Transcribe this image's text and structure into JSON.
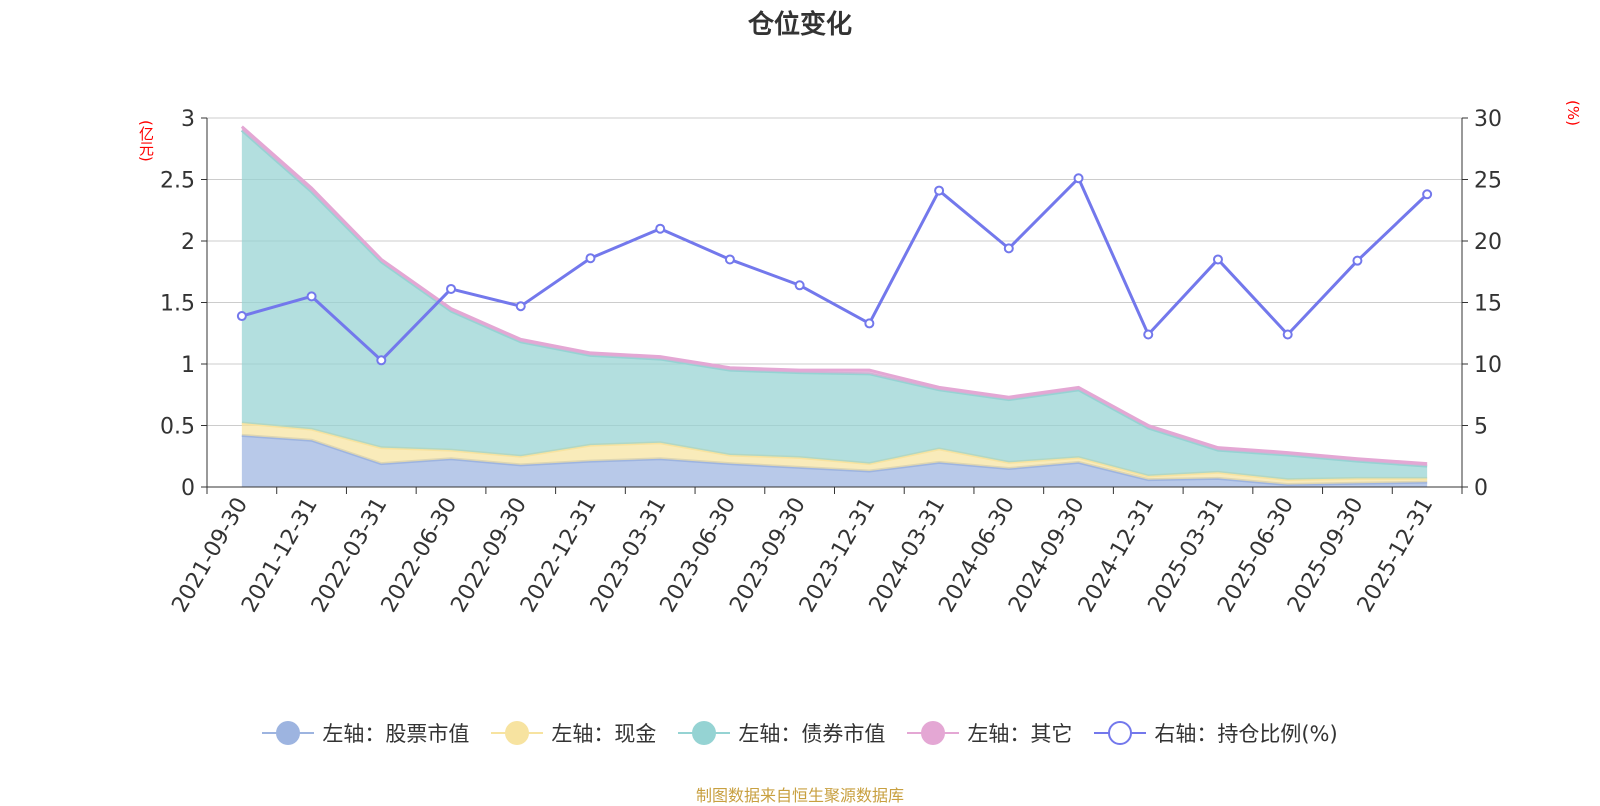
{
  "chart_data": {
    "type": "area",
    "title": "仓位变化",
    "left_axis_unit": "(亿元)",
    "right_axis_unit": "(%)",
    "categories": [
      "2021-09-30",
      "2021-12-31",
      "2022-03-31",
      "2022-06-30",
      "2022-09-30",
      "2022-12-31",
      "2023-03-31",
      "2023-06-30",
      "2023-09-30",
      "2023-12-31",
      "2024-03-31",
      "2024-06-30",
      "2024-09-30",
      "2024-12-31",
      "2025-03-31",
      "2025-06-30",
      "2025-09-30",
      "2025-12-31"
    ],
    "y_left": {
      "min": 0,
      "max": 3,
      "ticks": [
        0,
        0.5,
        1,
        1.5,
        2,
        2.5,
        3
      ]
    },
    "y_right": {
      "min": 0,
      "max": 30,
      "ticks": [
        0,
        5,
        10,
        15,
        20,
        25,
        30
      ]
    },
    "stacked_series": [
      {
        "name": "左轴：股票市值",
        "color": "#9db4e0",
        "values": [
          0.42,
          0.38,
          0.19,
          0.23,
          0.18,
          0.21,
          0.23,
          0.19,
          0.16,
          0.13,
          0.2,
          0.15,
          0.2,
          0.06,
          0.07,
          0.02,
          0.03,
          0.04
        ]
      },
      {
        "name": "左轴：现金",
        "color": "#f7e3a0",
        "values": [
          0.1,
          0.09,
          0.13,
          0.07,
          0.07,
          0.13,
          0.13,
          0.07,
          0.08,
          0.06,
          0.11,
          0.05,
          0.04,
          0.03,
          0.05,
          0.04,
          0.04,
          0.03
        ]
      },
      {
        "name": "左轴：债券市值",
        "color": "#95d3d3",
        "values": [
          2.38,
          1.93,
          1.51,
          1.13,
          0.93,
          0.73,
          0.68,
          0.69,
          0.69,
          0.73,
          0.48,
          0.51,
          0.55,
          0.39,
          0.18,
          0.2,
          0.14,
          0.1
        ]
      },
      {
        "name": "左轴：其它",
        "color": "#e4a7d4",
        "values": [
          0.03,
          0.03,
          0.02,
          0.02,
          0.02,
          0.02,
          0.02,
          0.02,
          0.02,
          0.03,
          0.02,
          0.02,
          0.02,
          0.02,
          0.02,
          0.02,
          0.02,
          0.02
        ]
      }
    ],
    "line_series": {
      "name": "右轴：持仓比例(%)",
      "color": "#7378ec",
      "axis": "right",
      "values": [
        13.9,
        15.5,
        10.3,
        16.1,
        14.7,
        18.6,
        21.0,
        18.5,
        16.4,
        13.3,
        24.1,
        19.4,
        25.1,
        12.4,
        18.5,
        12.4,
        18.4,
        23.8
      ]
    }
  },
  "footer": "制图数据来自恒生聚源数据库"
}
